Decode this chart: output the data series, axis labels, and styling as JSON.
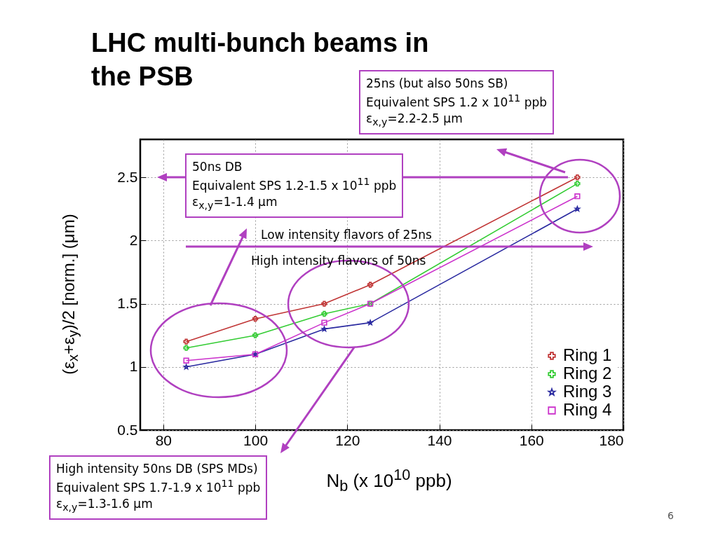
{
  "chart_data": {
    "type": "line",
    "title": "LHC multi-bunch beams in the PSB",
    "xlabel": "N$_{b}$ (x 10$^{10}$ ppb)",
    "ylabel": "(ε$_{x}$+ε$_{y}$)/2  [norm.] (μm)",
    "x": [
      85,
      100,
      115,
      125,
      170
    ],
    "series": [
      {
        "name": "Ring 1",
        "color": "#c03535",
        "marker": "cross",
        "values": [
          1.2,
          1.38,
          1.5,
          1.65,
          2.5
        ]
      },
      {
        "name": "Ring 2",
        "color": "#33cc33",
        "marker": "cross",
        "values": [
          1.15,
          1.25,
          1.42,
          1.5,
          2.45
        ]
      },
      {
        "name": "Ring 3",
        "color": "#2a2aa0",
        "marker": "star",
        "values": [
          1.0,
          1.1,
          1.3,
          1.35,
          2.25
        ]
      },
      {
        "name": "Ring 4",
        "color": "#cc33cc",
        "marker": "square",
        "values": [
          1.05,
          1.1,
          1.35,
          1.5,
          2.35
        ]
      }
    ],
    "xlim": [
      75,
      180
    ],
    "ylim": [
      0.5,
      2.8
    ],
    "xticks": [
      80,
      100,
      120,
      140,
      160,
      180
    ],
    "yticks": [
      0.5,
      1,
      1.5,
      2,
      2.5
    ],
    "grid": true,
    "legend": "bottom right",
    "annotations": [
      "25ns (but also 50ns SB)\nEquivalent SPS 1.2 x 10$^{11}$ ppb\nε$_{x,y}$=2.2-2.5 μm",
      "50ns DB\nEquivalent SPS 1.2-1.5 x 10$^{11}$ ppb\nε$_{x,y}$=1-1.4 μm",
      "Low intensity flavors of 25ns",
      "High intensity flavors of 50ns",
      "High intensity 50ns DB (SPS MDs)\nEquivalent SPS 1.7-1.9 x 10$^{11}$ ppb\nε$_{x,y}$=1.3-1.6 μm",
      "6"
    ]
  }
}
